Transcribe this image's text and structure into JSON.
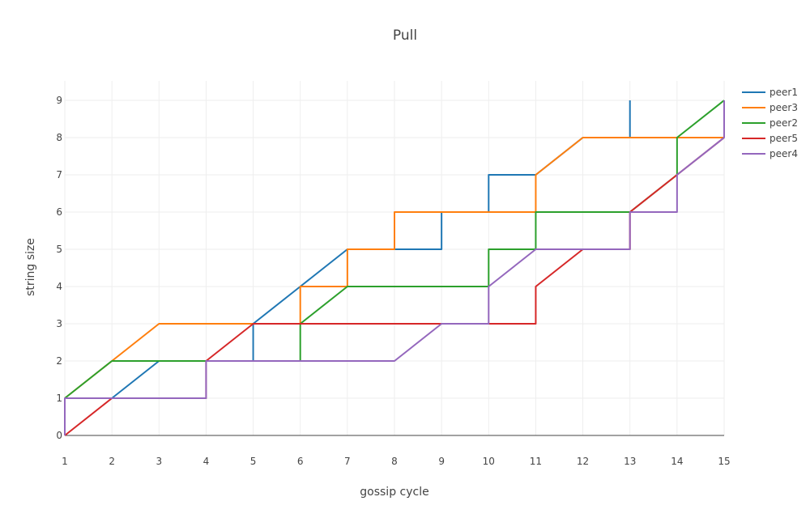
{
  "chart_data": {
    "type": "line",
    "line_shape": "step-with-diagonals",
    "title": "Pull",
    "xlabel": "gossip cycle",
    "ylabel": "string size",
    "xlim": [
      1,
      15
    ],
    "ylim": [
      0,
      9
    ],
    "x_ticks": [
      "1",
      "2",
      "3",
      "4",
      "5",
      "6",
      "7",
      "8",
      "9",
      "10",
      "11",
      "12",
      "13",
      "14",
      "15"
    ],
    "y_ticks": [
      "0",
      "1",
      "2",
      "3",
      "4",
      "5",
      "6",
      "7",
      "8",
      "9"
    ],
    "grid": true,
    "legend_position": "top-right",
    "series": [
      {
        "name": "peer1",
        "color": "#1f77b4",
        "points": [
          [
            1,
            1
          ],
          [
            1,
            1
          ],
          [
            2,
            1
          ],
          [
            3,
            2
          ],
          [
            4,
            2
          ],
          [
            4,
            2
          ],
          [
            5,
            2
          ],
          [
            5,
            3
          ],
          [
            6,
            4
          ],
          [
            7,
            5
          ],
          [
            8,
            5
          ],
          [
            9,
            5
          ],
          [
            9,
            6
          ],
          [
            10,
            6
          ],
          [
            10,
            7
          ],
          [
            11,
            7
          ],
          [
            12,
            8
          ],
          [
            13,
            8
          ],
          [
            13,
            9
          ]
        ]
      },
      {
        "name": "peer3",
        "color": "#ff7f0e",
        "points": [
          [
            1,
            1
          ],
          [
            2,
            2
          ],
          [
            3,
            3
          ],
          [
            4,
            3
          ],
          [
            5,
            3
          ],
          [
            6,
            3
          ],
          [
            6,
            4
          ],
          [
            7,
            4
          ],
          [
            7,
            5
          ],
          [
            8,
            5
          ],
          [
            8,
            6
          ],
          [
            9,
            6
          ],
          [
            10,
            6
          ],
          [
            11,
            6
          ],
          [
            11,
            7
          ],
          [
            12,
            8
          ],
          [
            13,
            8
          ],
          [
            14,
            8
          ],
          [
            15,
            8
          ]
        ]
      },
      {
        "name": "peer2",
        "color": "#2ca02c",
        "points": [
          [
            1,
            1
          ],
          [
            2,
            2
          ],
          [
            3,
            2
          ],
          [
            4,
            2
          ],
          [
            5,
            2
          ],
          [
            6,
            2
          ],
          [
            6,
            3
          ],
          [
            7,
            4
          ],
          [
            8,
            4
          ],
          [
            9,
            4
          ],
          [
            10,
            4
          ],
          [
            10,
            5
          ],
          [
            11,
            5
          ],
          [
            11,
            6
          ],
          [
            12,
            6
          ],
          [
            13,
            6
          ],
          [
            14,
            7
          ],
          [
            14,
            8
          ],
          [
            15,
            9
          ]
        ]
      },
      {
        "name": "peer5",
        "color": "#d62728",
        "points": [
          [
            1,
            0
          ],
          [
            2,
            1
          ],
          [
            3,
            1
          ],
          [
            4,
            1
          ],
          [
            4,
            2
          ],
          [
            5,
            3
          ],
          [
            6,
            3
          ],
          [
            7,
            3
          ],
          [
            8,
            3
          ],
          [
            9,
            3
          ],
          [
            10,
            3
          ],
          [
            11,
            3
          ],
          [
            11,
            4
          ],
          [
            12,
            5
          ],
          [
            13,
            5
          ],
          [
            13,
            6
          ],
          [
            14,
            7
          ],
          [
            15,
            8
          ]
        ]
      },
      {
        "name": "peer4",
        "color": "#9467bd",
        "points": [
          [
            1,
            0
          ],
          [
            1,
            1
          ],
          [
            2,
            1
          ],
          [
            3,
            1
          ],
          [
            4,
            1
          ],
          [
            4,
            2
          ],
          [
            5,
            2
          ],
          [
            6,
            2
          ],
          [
            7,
            2
          ],
          [
            8,
            2
          ],
          [
            9,
            3
          ],
          [
            10,
            3
          ],
          [
            10,
            4
          ],
          [
            11,
            5
          ],
          [
            12,
            5
          ],
          [
            13,
            5
          ],
          [
            13,
            6
          ],
          [
            14,
            6
          ],
          [
            14,
            7
          ],
          [
            15,
            8
          ],
          [
            15,
            9
          ]
        ]
      }
    ]
  }
}
